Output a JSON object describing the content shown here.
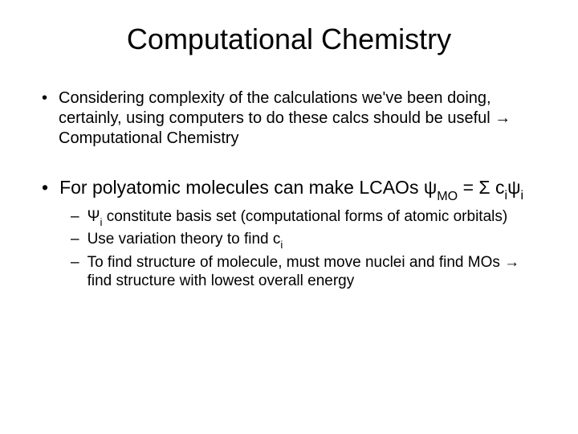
{
  "title": "Computational Chemistry",
  "bullet1": {
    "marker": "•",
    "text": "Considering complexity of the calculations we've been doing, certainly, using computers to do these calcs should be useful → Computational Chemistry"
  },
  "bullet2": {
    "marker": "•",
    "prefix": "For polyatomic molecules can make LCAOs  ψ",
    "sub1": "MO",
    "mid": " = Σ c",
    "sub2": "i",
    "psi2": "ψ",
    "sub3": "i"
  },
  "sub1": {
    "dash": "–",
    "pre": " Ψ",
    "sub": "i",
    "rest": " constitute basis set (computational forms of atomic orbitals)"
  },
  "sub2": {
    "dash": "–",
    "pre": "Use variation theory to find c",
    "sub": "i"
  },
  "sub3": {
    "dash": "–",
    "text": "To find structure of molecule, must move nuclei and find MOs → find structure with lowest overall energy"
  },
  "style": {
    "background": "#ffffff",
    "text_color": "#000000",
    "title_fontsize": 36,
    "bullet1_fontsize": 20,
    "bullet2_fontsize": 23,
    "sub_fontsize": 19,
    "font_family": "Arial"
  }
}
